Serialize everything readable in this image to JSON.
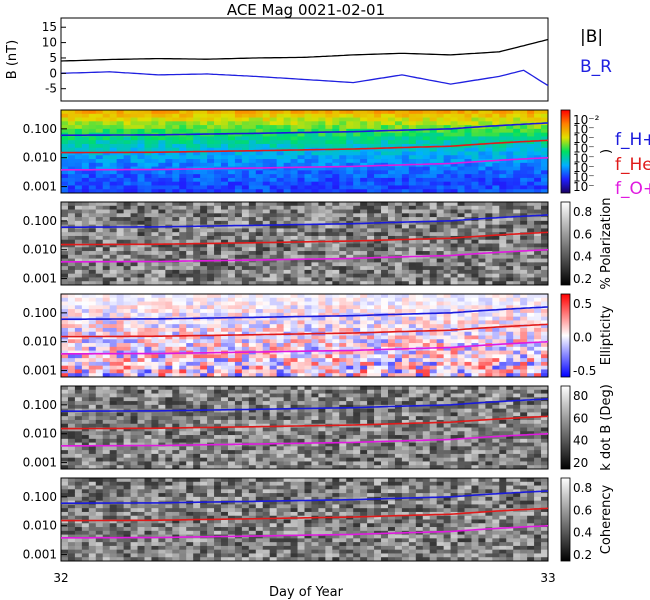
{
  "chart_data": {
    "title": "ACE Mag 0021-02-01",
    "xlabel": "Day of Year",
    "x_ticks": [
      "32",
      "33"
    ],
    "xlim": [
      32,
      33
    ],
    "panels": [
      {
        "type": "line",
        "ylabel": "B (nT)",
        "yticks": [
          "15",
          "10",
          "5",
          "0",
          "-5"
        ],
        "ylim": [
          -9,
          18
        ],
        "series": [
          {
            "name": "|B|",
            "color": "#000000",
            "x": [
              32.0,
              32.1,
              32.2,
              32.3,
              32.4,
              32.5,
              32.6,
              32.7,
              32.8,
              32.9,
              32.95,
              33.0
            ],
            "values": [
              4,
              4.5,
              4.8,
              4.6,
              5,
              5.2,
              6,
              6.5,
              6,
              7,
              9,
              11
            ]
          },
          {
            "name": "B_R",
            "color": "#2020e0",
            "x": [
              32.0,
              32.1,
              32.2,
              32.3,
              32.4,
              32.5,
              32.6,
              32.7,
              32.8,
              32.9,
              32.95,
              33.0
            ],
            "values": [
              0,
              0.5,
              -0.5,
              -0.2,
              -1,
              -2,
              -3,
              -0.5,
              -3.5,
              -1,
              1,
              -4
            ]
          }
        ]
      },
      {
        "type": "heatmap",
        "ylabel": "",
        "yticks": [
          "0.100",
          "0.010",
          "0.001"
        ],
        "ylim": [
          0.0006,
          0.45
        ],
        "colorbar_label": ")",
        "colorbar_ticks": [
          "10⁻²",
          "10⁻",
          "10⁻",
          "10⁻",
          "10⁻",
          "10⁻",
          "10⁻",
          "10⁻"
        ]
      },
      {
        "type": "heatmap",
        "ylabel": "",
        "yticks": [
          "0.100",
          "0.010",
          "0.001"
        ],
        "ylim": [
          0.0006,
          0.45
        ],
        "colorbar_label": "% Polarization",
        "colorbar_ticks": [
          "0.8",
          "0.6",
          "0.4",
          "0.2"
        ]
      },
      {
        "type": "heatmap",
        "ylabel": "",
        "yticks": [
          "0.100",
          "0.010",
          "0.001"
        ],
        "ylim": [
          0.0006,
          0.45
        ],
        "colorbar_label": "Ellipticity",
        "colorbar_ticks": [
          "0.5",
          "0.0",
          "-0.5"
        ]
      },
      {
        "type": "heatmap",
        "ylabel": "",
        "yticks": [
          "0.100",
          "0.010",
          "0.001"
        ],
        "ylim": [
          0.0006,
          0.45
        ],
        "colorbar_label": "k dot B (Deg)",
        "colorbar_ticks": [
          "80",
          "60",
          "40",
          "20"
        ]
      },
      {
        "type": "heatmap",
        "ylabel": "",
        "yticks": [
          "0.100",
          "0.010",
          "0.001"
        ],
        "ylim": [
          0.0006,
          0.45
        ],
        "colorbar_label": "Coherency",
        "colorbar_ticks": [
          "0.8",
          "0.6",
          "0.4",
          "0.2"
        ]
      }
    ],
    "legend_top": [
      {
        "label": "|B|",
        "color": "#000000"
      },
      {
        "label": "B_R",
        "color": "#2020e0"
      }
    ],
    "legend_ions": [
      {
        "label": "f_H+",
        "color": "#1a1adc"
      },
      {
        "label": "f_He+",
        "color": "#e01a1a"
      },
      {
        "label": "f_O+",
        "color": "#e01ae0"
      }
    ],
    "ion_lines": [
      {
        "name": "f_H+",
        "color": "#1a1adc",
        "x": [
          32.0,
          32.2,
          32.4,
          32.6,
          32.8,
          33.0
        ],
        "values": [
          0.06,
          0.062,
          0.07,
          0.08,
          0.1,
          0.16
        ]
      },
      {
        "name": "f_He+",
        "color": "#e01a1a",
        "x": [
          32.0,
          32.2,
          32.4,
          32.6,
          32.8,
          33.0
        ],
        "values": [
          0.015,
          0.0155,
          0.0175,
          0.02,
          0.025,
          0.04
        ]
      },
      {
        "name": "f_O+",
        "color": "#e01ae0",
        "x": [
          32.0,
          32.2,
          32.4,
          32.6,
          32.8,
          33.0
        ],
        "values": [
          0.0038,
          0.0039,
          0.0044,
          0.005,
          0.0063,
          0.01
        ]
      }
    ]
  }
}
